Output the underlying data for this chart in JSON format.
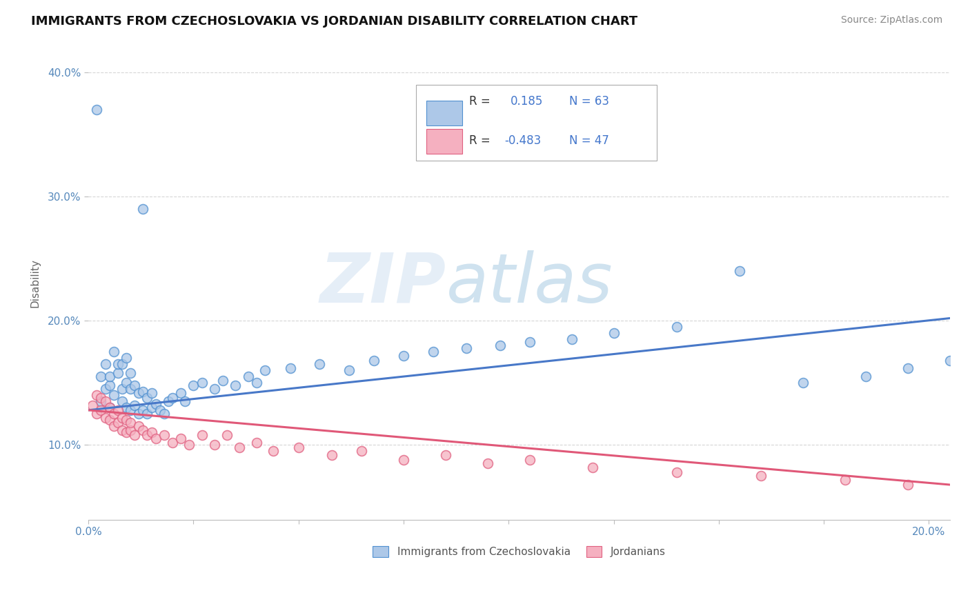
{
  "title": "IMMIGRANTS FROM CZECHOSLOVAKIA VS JORDANIAN DISABILITY CORRELATION CHART",
  "source": "Source: ZipAtlas.com",
  "ylabel": "Disability",
  "xlim": [
    0.0,
    0.205
  ],
  "ylim": [
    0.04,
    0.42
  ],
  "xtick_positions": [
    0.0,
    0.025,
    0.05,
    0.075,
    0.1,
    0.125,
    0.15,
    0.175,
    0.2
  ],
  "xticklabels": [
    "0.0%",
    "",
    "",
    "",
    "",
    "",
    "",
    "",
    "20.0%"
  ],
  "ytick_positions": [
    0.1,
    0.2,
    0.3,
    0.4
  ],
  "yticklabels": [
    "10.0%",
    "20.0%",
    "30.0%",
    "40.0%"
  ],
  "r_blue": 0.185,
  "n_blue": 63,
  "r_pink": -0.483,
  "n_pink": 47,
  "blue_fill": "#adc8e8",
  "pink_fill": "#f5b0c0",
  "blue_edge": "#5090d0",
  "pink_edge": "#e06080",
  "blue_line": "#4878c8",
  "pink_line": "#e05878",
  "legend_label_blue": "Immigrants from Czechoslovakia",
  "legend_label_pink": "Jordanians",
  "blue_line_x": [
    0.0,
    0.205
  ],
  "blue_line_y": [
    0.128,
    0.202
  ],
  "pink_line_x": [
    0.0,
    0.205
  ],
  "pink_line_y": [
    0.128,
    0.068
  ],
  "blue_pts_x": [
    0.002,
    0.003,
    0.003,
    0.004,
    0.004,
    0.005,
    0.005,
    0.005,
    0.006,
    0.006,
    0.007,
    0.007,
    0.008,
    0.008,
    0.008,
    0.009,
    0.009,
    0.009,
    0.01,
    0.01,
    0.01,
    0.011,
    0.011,
    0.012,
    0.012,
    0.013,
    0.013,
    0.014,
    0.014,
    0.015,
    0.015,
    0.016,
    0.017,
    0.018,
    0.019,
    0.02,
    0.022,
    0.023,
    0.025,
    0.027,
    0.03,
    0.032,
    0.035,
    0.038,
    0.04,
    0.042,
    0.048,
    0.055,
    0.062,
    0.068,
    0.075,
    0.082,
    0.09,
    0.098,
    0.105,
    0.115,
    0.125,
    0.14,
    0.155,
    0.17,
    0.185,
    0.195,
    0.205
  ],
  "blue_pts_y": [
    0.37,
    0.135,
    0.155,
    0.145,
    0.165,
    0.13,
    0.148,
    0.155,
    0.14,
    0.175,
    0.158,
    0.165,
    0.135,
    0.145,
    0.165,
    0.13,
    0.15,
    0.17,
    0.128,
    0.145,
    0.158,
    0.132,
    0.148,
    0.125,
    0.142,
    0.128,
    0.143,
    0.125,
    0.138,
    0.13,
    0.142,
    0.133,
    0.128,
    0.125,
    0.135,
    0.138,
    0.142,
    0.135,
    0.148,
    0.15,
    0.145,
    0.152,
    0.148,
    0.155,
    0.15,
    0.16,
    0.162,
    0.165,
    0.16,
    0.168,
    0.172,
    0.175,
    0.178,
    0.18,
    0.183,
    0.185,
    0.19,
    0.195,
    0.24,
    0.15,
    0.155,
    0.162,
    0.168
  ],
  "pink_pts_x": [
    0.001,
    0.002,
    0.002,
    0.003,
    0.003,
    0.004,
    0.004,
    0.005,
    0.005,
    0.006,
    0.006,
    0.007,
    0.007,
    0.008,
    0.008,
    0.009,
    0.009,
    0.01,
    0.01,
    0.011,
    0.012,
    0.013,
    0.014,
    0.015,
    0.016,
    0.018,
    0.02,
    0.022,
    0.024,
    0.027,
    0.03,
    0.033,
    0.036,
    0.04,
    0.044,
    0.05,
    0.058,
    0.065,
    0.075,
    0.085,
    0.095,
    0.105,
    0.12,
    0.14,
    0.16,
    0.18,
    0.195
  ],
  "pink_pts_y": [
    0.132,
    0.125,
    0.14,
    0.128,
    0.138,
    0.122,
    0.135,
    0.12,
    0.13,
    0.115,
    0.125,
    0.118,
    0.128,
    0.112,
    0.122,
    0.11,
    0.12,
    0.112,
    0.118,
    0.108,
    0.115,
    0.112,
    0.108,
    0.11,
    0.105,
    0.108,
    0.102,
    0.105,
    0.1,
    0.108,
    0.1,
    0.108,
    0.098,
    0.102,
    0.095,
    0.098,
    0.092,
    0.095,
    0.088,
    0.092,
    0.085,
    0.088,
    0.082,
    0.078,
    0.075,
    0.072,
    0.068
  ]
}
